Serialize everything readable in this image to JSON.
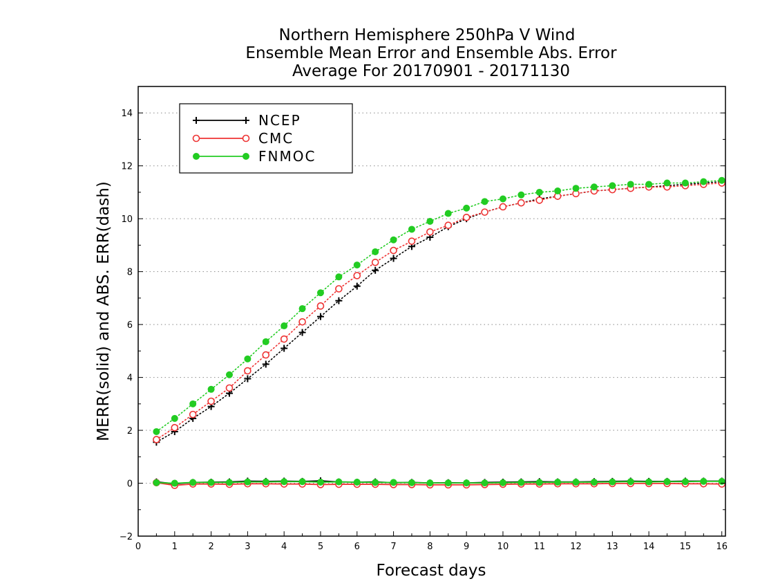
{
  "chart_data": {
    "type": "line",
    "title": [
      "Northern Hemisphere 250hPa V Wind",
      "Ensemble Mean Error and Ensemble Abs. Error",
      "Average For 20170901 - 20171130"
    ],
    "xlabel": "Forecast days",
    "ylabel": "MERR(solid) and ABS. ERR(dash)",
    "xlim": [
      0,
      16.1
    ],
    "ylim": [
      -2,
      15
    ],
    "xticks": [
      0,
      1,
      2,
      3,
      4,
      5,
      6,
      7,
      8,
      9,
      10,
      11,
      12,
      13,
      14,
      15,
      16
    ],
    "yticks": [
      -2,
      0,
      2,
      4,
      6,
      8,
      10,
      12,
      14
    ],
    "grid": "horizontal dotted",
    "legend_position": "top-left",
    "x": [
      0.5,
      1,
      1.5,
      2,
      2.5,
      3,
      3.5,
      4,
      4.5,
      5,
      5.5,
      6,
      6.5,
      7,
      7.5,
      8,
      8.5,
      9,
      9.5,
      10,
      10.5,
      11,
      11.5,
      12,
      12.5,
      13,
      13.5,
      14,
      14.5,
      15,
      15.5,
      16
    ],
    "series": [
      {
        "name": "NCEP",
        "color": "#000000",
        "marker": "plus",
        "abs_err": [
          1.55,
          1.95,
          2.45,
          2.9,
          3.4,
          3.95,
          4.5,
          5.1,
          5.7,
          6.3,
          6.9,
          7.45,
          8.05,
          8.5,
          8.95,
          9.3,
          9.7,
          10.0,
          10.25,
          10.45,
          10.6,
          10.75,
          10.85,
          10.95,
          11.05,
          11.1,
          11.15,
          11.2,
          11.25,
          11.3,
          11.35,
          11.4
        ],
        "mean_err": [
          0.05,
          -0.02,
          0.03,
          0.04,
          0.05,
          0.08,
          0.07,
          0.08,
          0.07,
          0.09,
          0.05,
          0.04,
          0.05,
          0.02,
          0.03,
          0.01,
          0.02,
          0.01,
          0.03,
          0.04,
          0.05,
          0.06,
          0.05,
          0.05,
          0.06,
          0.07,
          0.08,
          0.07,
          0.07,
          0.08,
          0.08,
          0.08
        ]
      },
      {
        "name": "CMC",
        "color": "#ee3333",
        "marker": "open-circle",
        "abs_err": [
          1.65,
          2.1,
          2.6,
          3.1,
          3.6,
          4.25,
          4.85,
          5.45,
          6.1,
          6.7,
          7.35,
          7.85,
          8.35,
          8.8,
          9.15,
          9.5,
          9.75,
          10.05,
          10.25,
          10.45,
          10.6,
          10.7,
          10.85,
          10.95,
          11.05,
          11.1,
          11.15,
          11.2,
          11.2,
          11.25,
          11.3,
          11.35
        ],
        "mean_err": [
          0.02,
          -0.08,
          -0.03,
          -0.03,
          -0.04,
          -0.02,
          -0.02,
          -0.03,
          -0.03,
          -0.05,
          -0.04,
          -0.04,
          -0.04,
          -0.05,
          -0.05,
          -0.06,
          -0.06,
          -0.06,
          -0.05,
          -0.04,
          -0.03,
          -0.03,
          -0.02,
          -0.02,
          -0.02,
          -0.01,
          -0.01,
          -0.01,
          -0.01,
          -0.02,
          -0.02,
          -0.03
        ]
      },
      {
        "name": "FNMOC",
        "color": "#22cc22",
        "marker": "filled-circle",
        "abs_err": [
          1.95,
          2.45,
          3.0,
          3.55,
          4.1,
          4.7,
          5.35,
          5.95,
          6.6,
          7.2,
          7.8,
          8.25,
          8.75,
          9.2,
          9.6,
          9.9,
          10.2,
          10.4,
          10.65,
          10.75,
          10.9,
          11.0,
          11.05,
          11.15,
          11.2,
          11.25,
          11.3,
          11.3,
          11.35,
          11.35,
          11.4,
          11.45
        ],
        "mean_err": [
          0.02,
          0.0,
          0.03,
          0.03,
          0.03,
          0.05,
          0.05,
          0.06,
          0.06,
          0.04,
          0.05,
          0.04,
          0.03,
          0.03,
          0.02,
          0.01,
          0.01,
          0.01,
          0.01,
          0.02,
          0.03,
          0.03,
          0.04,
          0.04,
          0.04,
          0.05,
          0.06,
          0.05,
          0.06,
          0.06,
          0.07,
          0.07
        ]
      }
    ]
  }
}
